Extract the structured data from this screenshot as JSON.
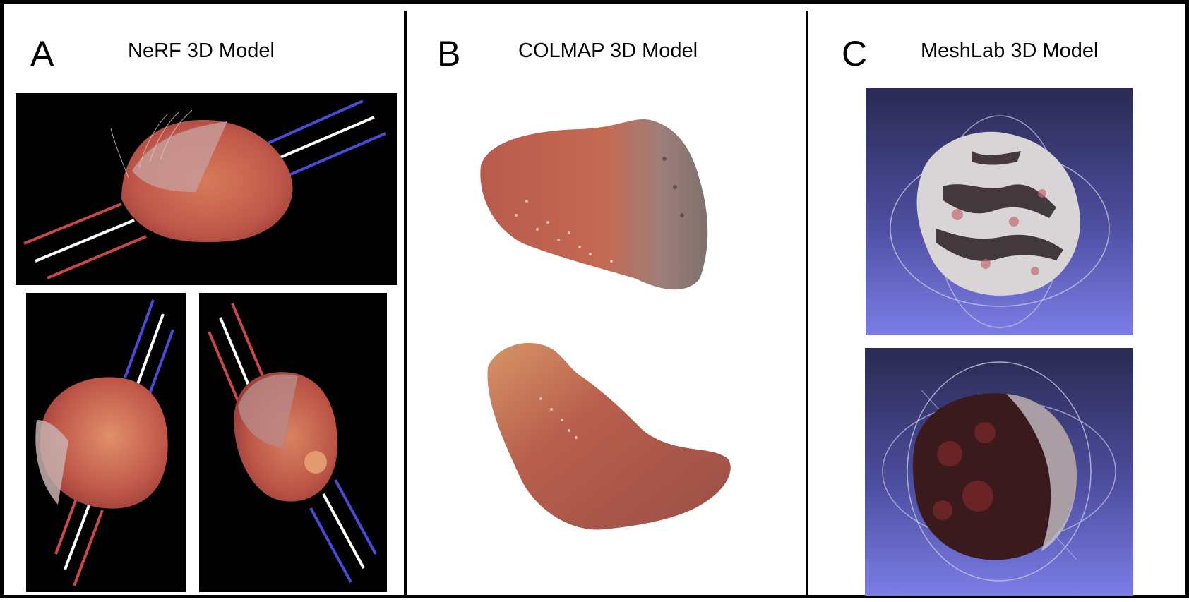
{
  "figure": {
    "panels": [
      {
        "letter": "A",
        "title": "NeRF 3D Model"
      },
      {
        "letter": "B",
        "title": "COLMAP 3D Model"
      },
      {
        "letter": "C",
        "title": "MeshLab 3D Model"
      }
    ]
  },
  "colors": {
    "frame": "#000000",
    "nerf_background": "#000000",
    "meshlab_background_top": "#2a2a52",
    "meshlab_background_bottom": "#7b7de6",
    "tissue": "#c8624f",
    "red_line": "#c8484a",
    "white_line": "#ffffff",
    "blue_line": "#4a4ad6"
  }
}
